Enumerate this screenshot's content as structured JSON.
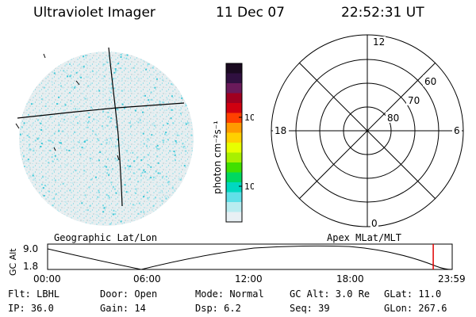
{
  "header": {
    "title": "Ultraviolet Imager",
    "date": "11 Dec 07",
    "time": "22:52:31 UT"
  },
  "colorbar": {
    "unit_label": "photon cm⁻²s⁻¹",
    "ticks": [
      "100",
      "10"
    ],
    "colors": [
      "#1a0a20",
      "#301040",
      "#6a1a5a",
      "#a00020",
      "#d00010",
      "#ff4000",
      "#ff9a00",
      "#ffd000",
      "#e8ff00",
      "#a8f000",
      "#40e000",
      "#00d860",
      "#00d8c0",
      "#60e0e8",
      "#b8ecf0",
      "#e8f0f4"
    ]
  },
  "polar": {
    "hour_labels": {
      "top": "12",
      "left": "18",
      "right": "6",
      "bottom": "0"
    },
    "lat_labels": [
      "60",
      "70",
      "80"
    ]
  },
  "panel_labels": {
    "left": "Geographic Lat/Lon",
    "right": "Apex MLat/MLT"
  },
  "orbit": {
    "ylabel": "GC Alt",
    "ytick_top": "9.0",
    "ytick_bottom": "1.8",
    "xticks": [
      "00:00",
      "06:00",
      "12:00",
      "18:00",
      "23:59"
    ],
    "current_marker_hour": 22.875,
    "marker_color": "#e00000"
  },
  "info": {
    "flt": "Flt: LBHL",
    "ip": "IP: 36.0",
    "door": "Door: Open",
    "gain": "Gain: 14",
    "mode": "Mode: Normal",
    "dsp": "Dsp:    6.2",
    "gcalt": "GC Alt: 3.0 Re",
    "seq": "Seq: 39",
    "glat": "GLat:  11.0",
    "glon": "GLon: 267.6"
  }
}
